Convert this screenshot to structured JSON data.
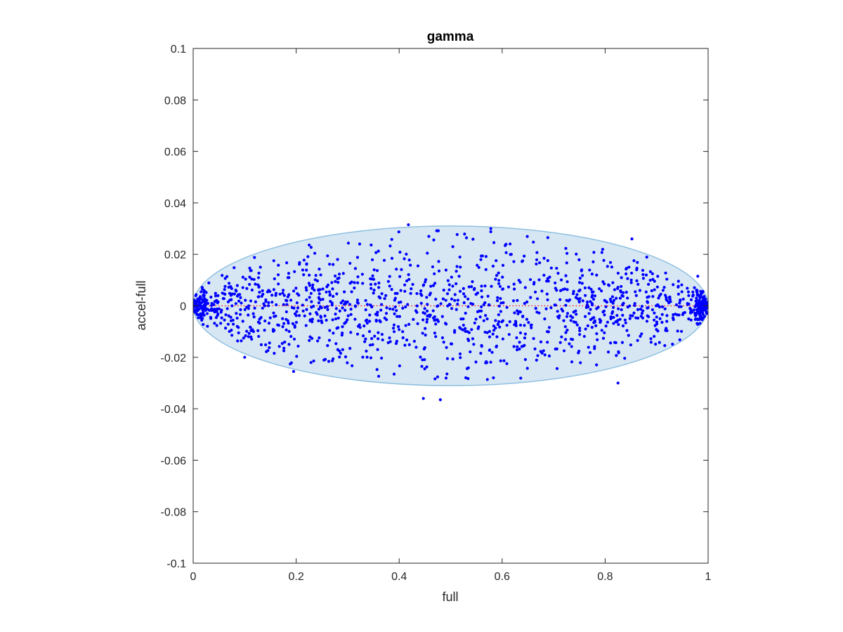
{
  "chart_data": {
    "type": "scatter",
    "title": "gamma",
    "xlabel": "full",
    "ylabel": "accel-full",
    "xlim": [
      0,
      1
    ],
    "ylim": [
      -0.1,
      0.1
    ],
    "xticks": [
      0,
      0.2,
      0.4,
      0.6,
      0.8,
      1
    ],
    "xtick_labels": [
      "0",
      "0.2",
      "0.4",
      "0.6",
      "0.8",
      "1"
    ],
    "yticks": [
      -0.1,
      -0.08,
      -0.06,
      -0.04,
      -0.02,
      0,
      0.02,
      0.04,
      0.06,
      0.08,
      0.1
    ],
    "ytick_labels": [
      "-0.1",
      "-0.08",
      "-0.06",
      "-0.04",
      "-0.02",
      "0",
      "0.02",
      "0.04",
      "0.06",
      "0.08",
      "0.1"
    ],
    "grid": false,
    "colors": {
      "points": "#0000ff",
      "ellipse_fill": "#d6e7f3",
      "ellipse_stroke": "#8fbfe0",
      "zero_line": "#ff0000"
    },
    "ellipse": {
      "cx": 0.5,
      "cy": 0.0,
      "rx": 0.5,
      "ry": 0.031
    },
    "zero_line": {
      "y": 0,
      "x_range": [
        0,
        1
      ],
      "style": "dotted"
    },
    "point_count": 1500,
    "distribution": {
      "y_amplitude_max": 0.03,
      "dense_edges": true
    },
    "outliers": [
      {
        "x": 0.418,
        "y": 0.0315
      },
      {
        "x": 0.578,
        "y": 0.03
      },
      {
        "x": 0.852,
        "y": 0.026
      },
      {
        "x": 0.447,
        "y": -0.036
      },
      {
        "x": 0.48,
        "y": -0.0365
      },
      {
        "x": 0.825,
        "y": -0.03
      },
      {
        "x": 0.195,
        "y": -0.0255
      },
      {
        "x": 0.1,
        "y": -0.02
      },
      {
        "x": 0.98,
        "y": 0.0115
      }
    ]
  }
}
